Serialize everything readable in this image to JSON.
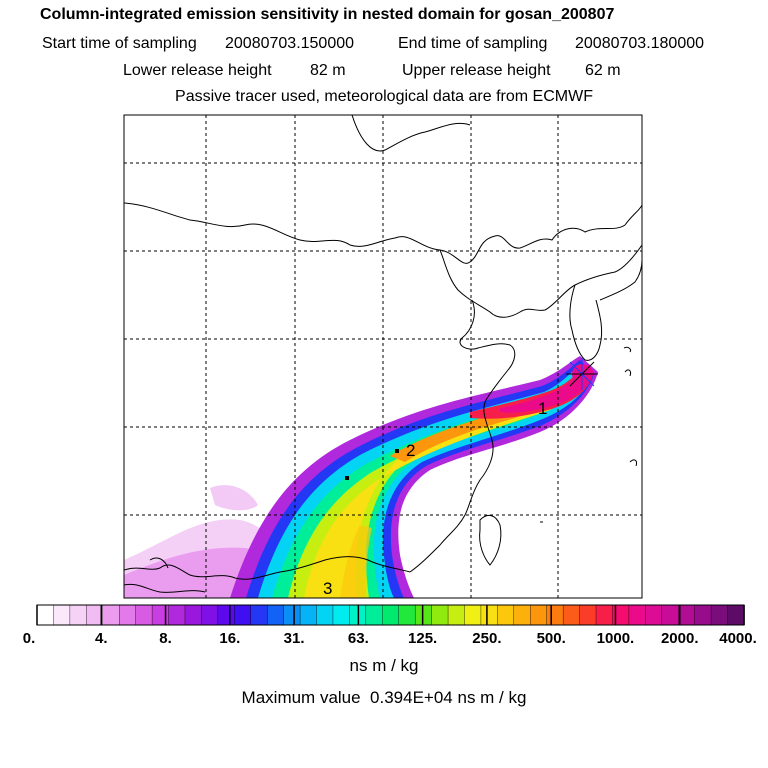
{
  "header": {
    "title": "Column-integrated emission sensitivity in nested domain for gosan_200807",
    "start_label": "Start time of sampling",
    "start_value": "20080703.150000",
    "end_label": "End time of sampling",
    "end_value": "20080703.180000",
    "lower_label": "Lower release height",
    "lower_value": "82 m",
    "upper_label": "Upper release height",
    "upper_value": "62 m",
    "note": "Passive tracer used, meteorological data are from ECMWF"
  },
  "map": {
    "markers": [
      "1",
      "2",
      "3"
    ],
    "release_marker": "release-star-icon"
  },
  "colorbar": {
    "labels": [
      "0.",
      "4.",
      "8.",
      "16.",
      "31.",
      "63.",
      "125.",
      "250.",
      "500.",
      "1000.",
      "2000.",
      "4000."
    ],
    "colors": [
      "#ffffff",
      "#fbe8fb",
      "#f6d2f6",
      "#f0bcf2",
      "#ec9cee",
      "#e37ae9",
      "#d95be4",
      "#c83ee0",
      "#b129dd",
      "#9a18dd",
      "#8010e6",
      "#5e08ee",
      "#3f0ff2",
      "#2337f4",
      "#1262f5",
      "#0b8ef6",
      "#07b3f6",
      "#04d4f4",
      "#00ecee",
      "#00f0c8",
      "#00ee9a",
      "#00ea6e",
      "#22e83c",
      "#58e618",
      "#90ea10",
      "#c6ee10",
      "#f0f014",
      "#f8e012",
      "#fcc80c",
      "#fcb00c",
      "#fc960c",
      "#fc7c10",
      "#fc5c1a",
      "#fa3c28",
      "#f81e4a",
      "#f40c6e",
      "#ea0a8a",
      "#dc0c96",
      "#c80c98",
      "#b00c94",
      "#960c8a",
      "#7a0c7c",
      "#5c0c66"
    ],
    "units": "ns m / kg",
    "max_label": "Maximum value",
    "max_value": "0.394E+04 ns m / kg"
  }
}
